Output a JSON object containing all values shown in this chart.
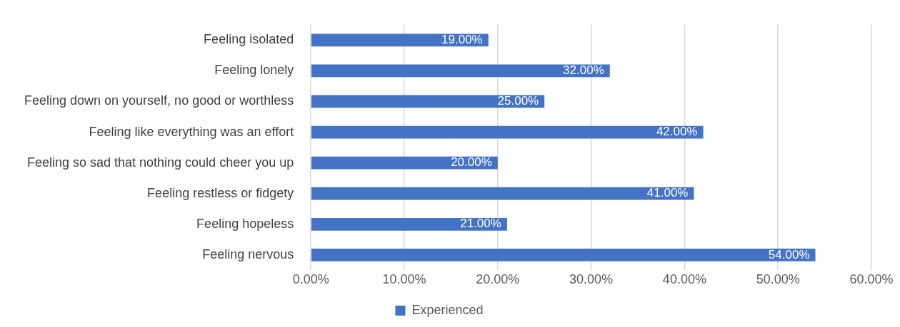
{
  "chart_data": {
    "type": "bar",
    "orientation": "horizontal",
    "categories": [
      "Feeling isolated",
      "Feeling lonely",
      "Feeling down on yourself, no good or worthless",
      "Feeling like everything was an effort",
      "Feeling so sad that nothing could cheer you up",
      "Feeling restless or fidgety",
      "Feeling hopeless",
      "Feeling nervous"
    ],
    "series": [
      {
        "name": "Experienced",
        "color": "#4472c4",
        "values": [
          19,
          32,
          25,
          42,
          20,
          41,
          21,
          54
        ],
        "value_labels": [
          "19.00%",
          "32.00%",
          "25.00%",
          "42.00%",
          "20.00%",
          "41.00%",
          "21.00%",
          "54.00%"
        ]
      }
    ],
    "xlim": [
      0,
      60
    ],
    "xticks": [
      {
        "value": 0,
        "label": "0.00%"
      },
      {
        "value": 10,
        "label": "10.00%"
      },
      {
        "value": 20,
        "label": "20.00%"
      },
      {
        "value": 30,
        "label": "30.00%"
      },
      {
        "value": 40,
        "label": "40.00%"
      },
      {
        "value": 50,
        "label": "50.00%"
      },
      {
        "value": 60,
        "label": "60.00%"
      }
    ],
    "grid": "x",
    "legend": "bottom"
  }
}
